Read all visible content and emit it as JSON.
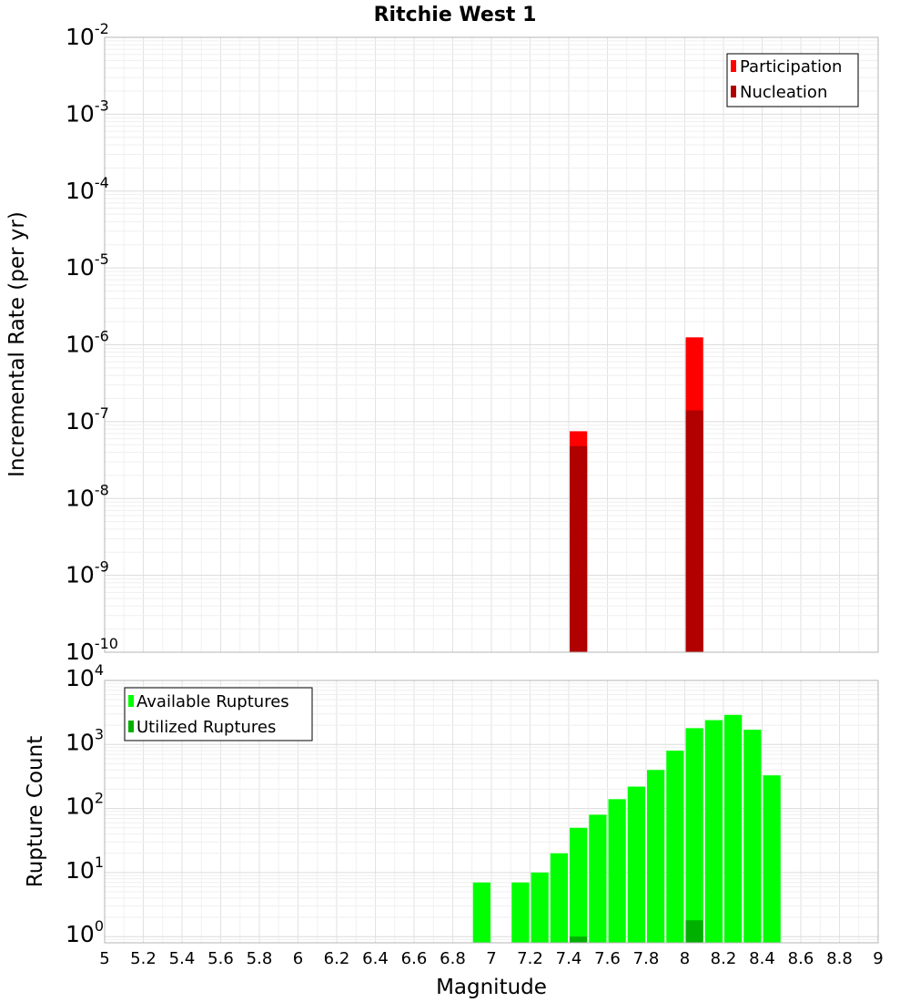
{
  "chart_data": [
    {
      "type": "bar",
      "title": "Ritchie West 1",
      "ylabel": "Incremental Rate (per yr)",
      "xlabel": "",
      "y_scale": "log",
      "xlim": [
        5,
        9
      ],
      "ylim": [
        1e-10,
        0.01
      ],
      "grid": true,
      "legend_position": "top-right",
      "series": [
        {
          "name": "Participation",
          "color": "#ff0000",
          "x": [
            7.45,
            8.05
          ],
          "values": [
            7.5e-08,
            1.25e-06
          ]
        },
        {
          "name": "Nucleation",
          "color": "#b00000",
          "x": [
            7.45,
            8.05
          ],
          "values": [
            4.8e-08,
            1.4e-07
          ]
        }
      ],
      "y_ticks": [
        {
          "base": "10",
          "exp": "-10"
        },
        {
          "base": "10",
          "exp": "-9"
        },
        {
          "base": "10",
          "exp": "-8"
        },
        {
          "base": "10",
          "exp": "-7"
        },
        {
          "base": "10",
          "exp": "-6"
        },
        {
          "base": "10",
          "exp": "-5"
        },
        {
          "base": "10",
          "exp": "-4"
        },
        {
          "base": "10",
          "exp": "-3"
        },
        {
          "base": "10",
          "exp": "-2"
        }
      ]
    },
    {
      "type": "bar",
      "title": "",
      "ylabel": "Rupture Count",
      "xlabel": "Magnitude",
      "y_scale": "log",
      "xlim": [
        5,
        9
      ],
      "ylim": [
        0.8,
        10000
      ],
      "grid": true,
      "legend_position": "top-left",
      "series": [
        {
          "name": "Available Ruptures",
          "color": "#00ff00",
          "x": [
            6.95,
            7.15,
            7.25,
            7.35,
            7.45,
            7.55,
            7.65,
            7.75,
            7.85,
            7.95,
            8.05,
            8.15,
            8.25,
            8.35,
            8.45
          ],
          "values": [
            7,
            7,
            10,
            20,
            50,
            80,
            140,
            220,
            400,
            800,
            1800,
            2400,
            2900,
            1700,
            330
          ]
        },
        {
          "name": "Utilized Ruptures",
          "color": "#00b000",
          "x": [
            7.45,
            8.05
          ],
          "values": [
            1,
            1.8
          ]
        }
      ],
      "y_ticks": [
        {
          "base": "10",
          "exp": "0"
        },
        {
          "base": "10",
          "exp": "1"
        },
        {
          "base": "10",
          "exp": "2"
        },
        {
          "base": "10",
          "exp": "3"
        },
        {
          "base": "10",
          "exp": "4"
        }
      ],
      "x_ticks": [
        "5",
        "5.2",
        "5.4",
        "5.6",
        "5.8",
        "6",
        "6.2",
        "6.4",
        "6.6",
        "6.8",
        "7",
        "7.2",
        "7.4",
        "7.6",
        "7.8",
        "8",
        "8.2",
        "8.4",
        "8.6",
        "8.8",
        "9"
      ]
    }
  ]
}
